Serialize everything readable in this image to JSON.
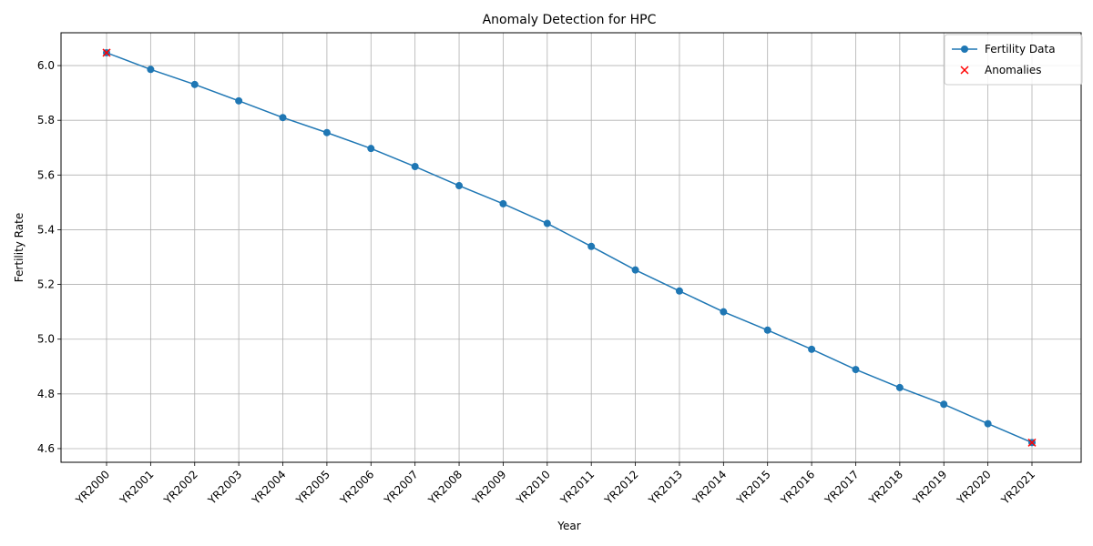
{
  "chart_data": {
    "type": "line",
    "title": "Anomaly Detection for HPC",
    "xlabel": "Year",
    "ylabel": "Fertility Rate",
    "categories": [
      "YR2000",
      "YR2001",
      "YR2002",
      "YR2003",
      "YR2004",
      "YR2005",
      "YR2006",
      "YR2007",
      "YR2008",
      "YR2009",
      "YR2010",
      "YR2011",
      "YR2012",
      "YR2013",
      "YR2014",
      "YR2015",
      "YR2016",
      "YR2017",
      "YR2018",
      "YR2019",
      "YR2020",
      "YR2021"
    ],
    "series": [
      {
        "name": "Fertility Data",
        "color": "#1f77b4",
        "marker": "circle",
        "values": [
          6.047,
          5.986,
          5.931,
          5.871,
          5.81,
          5.755,
          5.697,
          5.631,
          5.561,
          5.495,
          5.423,
          5.339,
          5.253,
          5.176,
          5.1,
          5.033,
          4.963,
          4.889,
          4.823,
          4.762,
          4.691,
          4.622
        ]
      }
    ],
    "anomalies": {
      "name": "Anomalies",
      "color": "#ff0000",
      "marker": "x",
      "points": [
        {
          "x": "YR2000",
          "y": 6.047
        },
        {
          "x": "YR2021",
          "y": 4.622
        }
      ]
    },
    "ylim": [
      4.55,
      6.12
    ],
    "yticks": [
      4.6,
      4.8,
      5.0,
      5.2,
      5.4,
      5.6,
      5.8,
      6.0
    ],
    "ytick_labels": [
      "4.6",
      "4.8",
      "5.0",
      "5.2",
      "5.4",
      "5.6",
      "5.8",
      "6.0"
    ],
    "grid": true,
    "legend_position": "top-right"
  }
}
